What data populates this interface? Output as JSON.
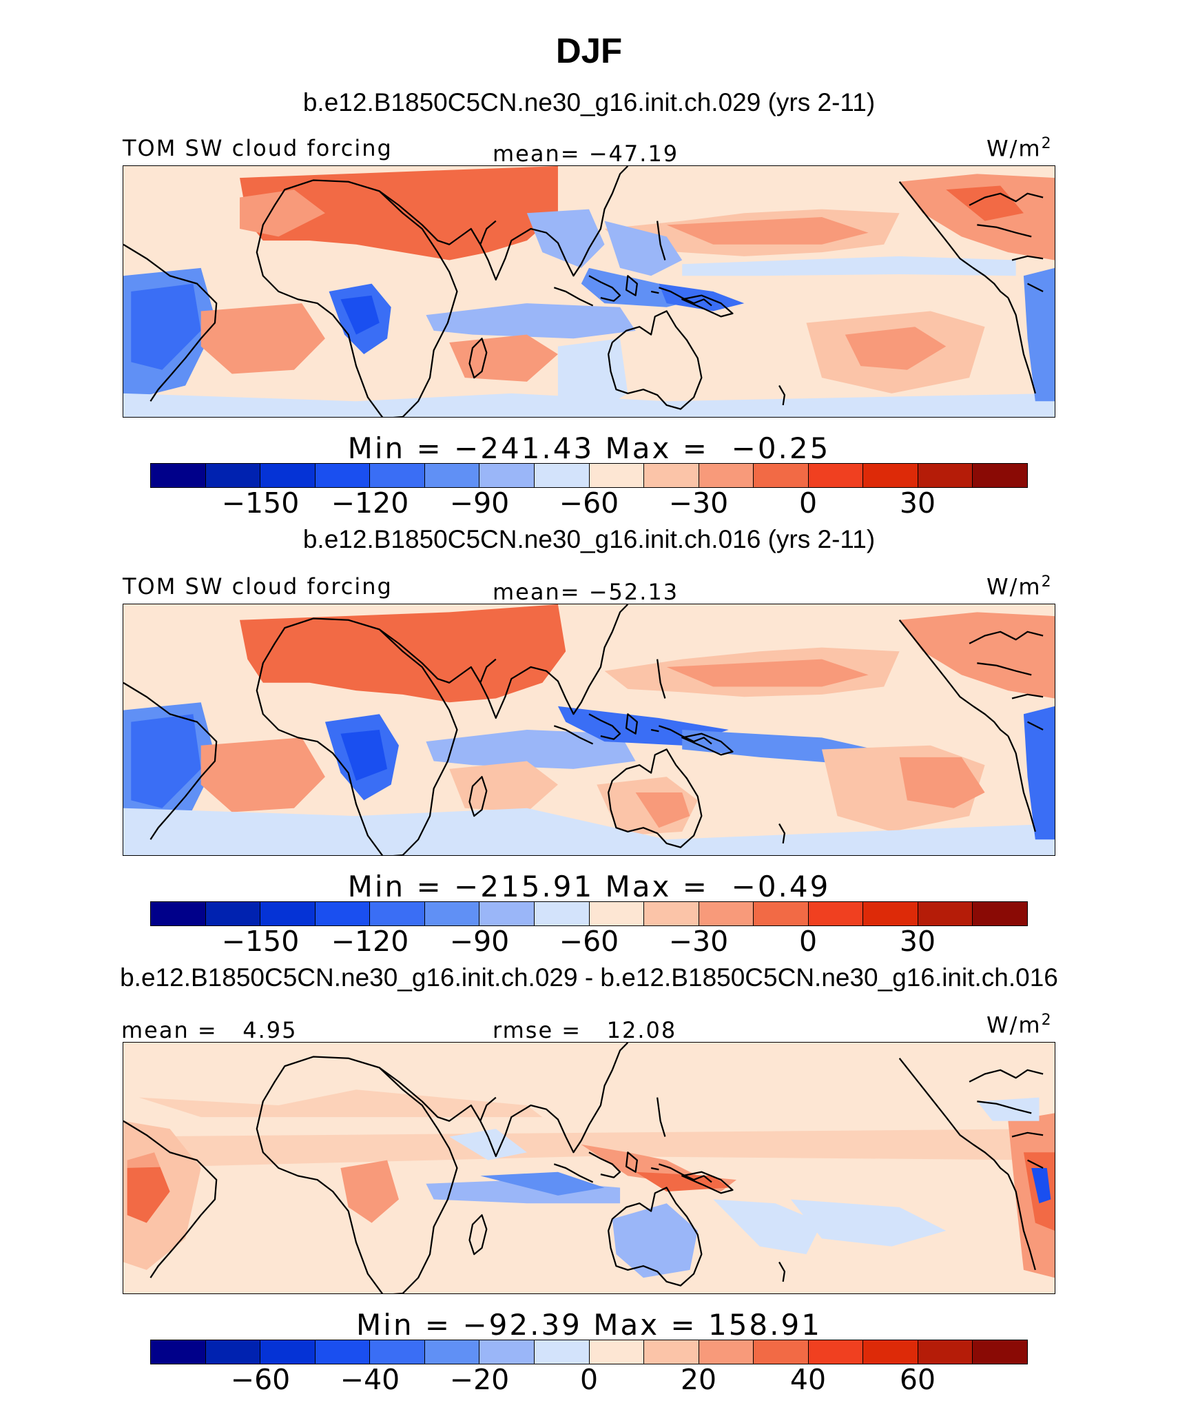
{
  "title": "DJF",
  "colormap": [
    "#00008a",
    "#0022b0",
    "#0533d6",
    "#1a4ff0",
    "#3a6ef5",
    "#6090f5",
    "#9ab6f8",
    "#d3e3fb",
    "#fde6d3",
    "#fbc4a8",
    "#f89a7a",
    "#f26a45",
    "#f04020",
    "#dd2a08",
    "#b51c08",
    "#8a0a05"
  ],
  "panels": [
    {
      "subtitle": "b.e12.B1850C5CN.ne30_g16.init.ch.029 (yrs 2-11)",
      "left_label": "TOM SW cloud forcing",
      "center_label": "mean= −47.19",
      "units_base": "W/m",
      "units_exp": "2",
      "minmax": "Min = −241.43 Max =  −0.25",
      "ticks": [
        "−150",
        "−120",
        "−90",
        "−60",
        "−30",
        "0",
        "30"
      ]
    },
    {
      "subtitle": "b.e12.B1850C5CN.ne30_g16.init.ch.016 (yrs 2-11)",
      "left_label": "TOM SW cloud forcing",
      "center_label": "mean= −52.13",
      "units_base": "W/m",
      "units_exp": "2",
      "minmax": "Min = −215.91 Max =  −0.49",
      "ticks": [
        "−150",
        "−120",
        "−90",
        "−60",
        "−30",
        "0",
        "30"
      ]
    },
    {
      "subtitle": "b.e12.B1850C5CN.ne30_g16.init.ch.029 - b.e12.B1850C5CN.ne30_g16.init.ch.016",
      "left_label": "mean =   4.95",
      "center_label": "rmse =   12.08",
      "units_base": "W/m",
      "units_exp": "2",
      "minmax": "Min = −92.39 Max = 158.91",
      "ticks": [
        "−60",
        "−40",
        "−20",
        "0",
        "20",
        "40",
        "60"
      ]
    }
  ]
}
